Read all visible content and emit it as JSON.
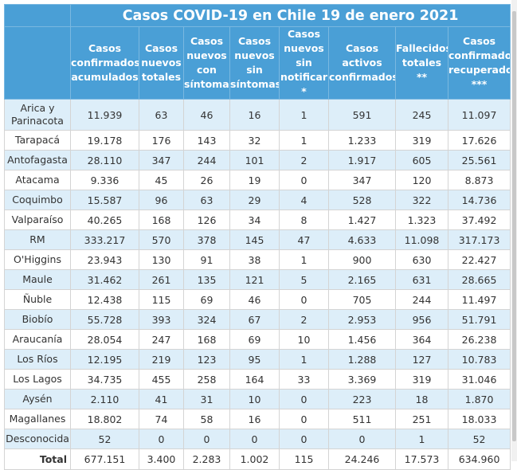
{
  "title": "Casos COVID-19 en Chile 19 de enero 2021",
  "columns": [
    "Casos confirmados acumulados",
    "Casos nuevos totales",
    "Casos nuevos con síntomas",
    "Casos nuevos sin síntomas",
    "Casos nuevos sin notificar *",
    "Casos activos confirmados",
    "Fallecidos totales **",
    "Casos confirmados recuperados ***"
  ],
  "rows": [
    {
      "region": "Arica y Parinacota",
      "values": [
        "11.939",
        "63",
        "46",
        "16",
        "1",
        "591",
        "245",
        "11.097"
      ]
    },
    {
      "region": "Tarapacá",
      "values": [
        "19.178",
        "176",
        "143",
        "32",
        "1",
        "1.233",
        "319",
        "17.626"
      ]
    },
    {
      "region": "Antofagasta",
      "values": [
        "28.110",
        "347",
        "244",
        "101",
        "2",
        "1.917",
        "605",
        "25.561"
      ]
    },
    {
      "region": "Atacama",
      "values": [
        "9.336",
        "45",
        "26",
        "19",
        "0",
        "347",
        "120",
        "8.873"
      ]
    },
    {
      "region": "Coquimbo",
      "values": [
        "15.587",
        "96",
        "63",
        "29",
        "4",
        "528",
        "322",
        "14.736"
      ]
    },
    {
      "region": "Valparaíso",
      "values": [
        "40.265",
        "168",
        "126",
        "34",
        "8",
        "1.427",
        "1.323",
        "37.492"
      ]
    },
    {
      "region": "RM",
      "values": [
        "333.217",
        "570",
        "378",
        "145",
        "47",
        "4.633",
        "11.098",
        "317.173"
      ]
    },
    {
      "region": "O'Higgins",
      "values": [
        "23.943",
        "130",
        "91",
        "38",
        "1",
        "900",
        "630",
        "22.427"
      ]
    },
    {
      "region": "Maule",
      "values": [
        "31.462",
        "261",
        "135",
        "121",
        "5",
        "2.165",
        "631",
        "28.665"
      ]
    },
    {
      "region": "Ñuble",
      "values": [
        "12.438",
        "115",
        "69",
        "46",
        "0",
        "705",
        "244",
        "11.497"
      ]
    },
    {
      "region": "Biobío",
      "values": [
        "55.728",
        "393",
        "324",
        "67",
        "2",
        "2.953",
        "956",
        "51.791"
      ]
    },
    {
      "region": "Araucanía",
      "values": [
        "28.054",
        "247",
        "168",
        "69",
        "10",
        "1.456",
        "364",
        "26.238"
      ]
    },
    {
      "region": "Los Ríos",
      "values": [
        "12.195",
        "219",
        "123",
        "95",
        "1",
        "1.288",
        "127",
        "10.783"
      ]
    },
    {
      "region": "Los Lagos",
      "values": [
        "34.735",
        "455",
        "258",
        "164",
        "33",
        "3.369",
        "319",
        "31.046"
      ]
    },
    {
      "region": "Aysén",
      "values": [
        "2.110",
        "41",
        "31",
        "10",
        "0",
        "223",
        "18",
        "1.870"
      ]
    },
    {
      "region": "Magallanes",
      "values": [
        "18.802",
        "74",
        "58",
        "16",
        "0",
        "511",
        "251",
        "18.033"
      ]
    },
    {
      "region": "Desconocida",
      "values": [
        "52",
        "0",
        "0",
        "0",
        "0",
        "0",
        "1",
        "52"
      ]
    }
  ],
  "total": {
    "label": "Total",
    "values": [
      "677.151",
      "3.400",
      "2.283",
      "1.002",
      "115",
      "24.246",
      "17.573",
      "634.960"
    ]
  },
  "colors": {
    "header": "#4a9fd6",
    "shade": "#ddeef9",
    "border": "#d4d4d4"
  }
}
